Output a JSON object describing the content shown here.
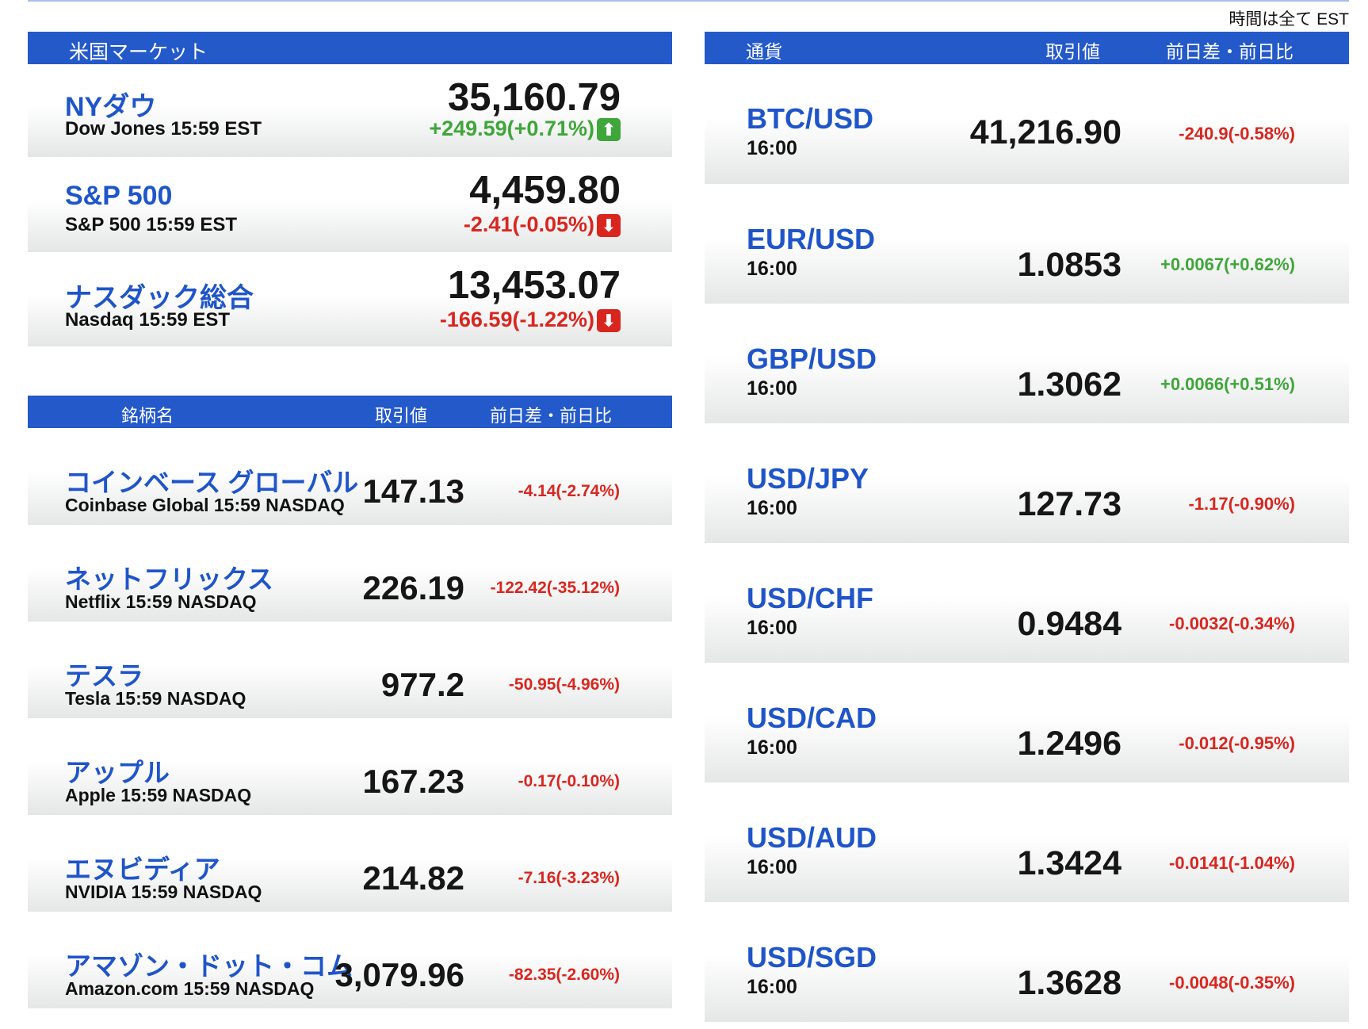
{
  "note": "時間は全て EST",
  "market": {
    "title": "米国マーケット",
    "indices": [
      {
        "name": "NYダウ",
        "sub": "Dow Jones 15:59 EST",
        "value": "35,160.79",
        "change": "+249.59(+0.71%)",
        "dir": "up"
      },
      {
        "name": "S&P 500",
        "sub": "S&P 500 15:59 EST",
        "value": "4,459.80",
        "change": "-2.41(-0.05%)",
        "dir": "down"
      },
      {
        "name": "ナスダック総合",
        "sub": "Nasdaq 15:59 EST",
        "value": "13,453.07",
        "change": "-166.59(-1.22%)",
        "dir": "down"
      }
    ]
  },
  "stocks": {
    "headers": [
      "銘柄名",
      "取引値",
      "前日差・前日比"
    ],
    "rows": [
      {
        "name": "コインベース グローバル",
        "sub": "Coinbase Global 15:59  NASDAQ",
        "value": "147.13",
        "change": "-4.14(-2.74%)"
      },
      {
        "name": "ネットフリックス",
        "sub": "Netflix 15:59  NASDAQ",
        "value": "226.19",
        "change": "-122.42(-35.12%)"
      },
      {
        "name": "テスラ",
        "sub": "Tesla 15:59  NASDAQ",
        "value": "977.2",
        "change": "-50.95(-4.96%)"
      },
      {
        "name": "アップル",
        "sub": "Apple 15:59  NASDAQ",
        "value": "167.23",
        "change": "-0.17(-0.10%)"
      },
      {
        "name": "エヌビディア",
        "sub": "NVIDIA 15:59  NASDAQ",
        "value": "214.82",
        "change": "-7.16(-3.23%)"
      },
      {
        "name": "アマゾン・ドット・コム",
        "sub": "Amazon.com 15:59  NASDAQ",
        "value": "3,079.96",
        "change": "-82.35(-2.60%)"
      }
    ]
  },
  "fx": {
    "headers": [
      "通貨",
      "取引値",
      "前日差・前日比"
    ],
    "rows": [
      {
        "pair": "BTC/USD",
        "time": "16:00",
        "value": "41,216.90",
        "change": "-240.9(-0.58%)",
        "dir": "down"
      },
      {
        "pair": "EUR/USD",
        "time": "16:00",
        "value": "1.0853",
        "change": "+0.0067(+0.62%)",
        "dir": "up"
      },
      {
        "pair": "GBP/USD",
        "time": "16:00",
        "value": "1.3062",
        "change": "+0.0066(+0.51%)",
        "dir": "up"
      },
      {
        "pair": "USD/JPY",
        "time": "16:00",
        "value": "127.73",
        "change": "-1.17(-0.90%)",
        "dir": "down"
      },
      {
        "pair": "USD/CHF",
        "time": "16:00",
        "value": "0.9484",
        "change": "-0.0032(-0.34%)",
        "dir": "down"
      },
      {
        "pair": "USD/CAD",
        "time": "16:00",
        "value": "1.2496",
        "change": "-0.012(-0.95%)",
        "dir": "down"
      },
      {
        "pair": "USD/AUD",
        "time": "16:00",
        "value": "1.3424",
        "change": "-0.0141(-1.04%)",
        "dir": "down"
      },
      {
        "pair": "USD/SGD",
        "time": "16:00",
        "value": "1.3628",
        "change": "-0.0048(-0.35%)",
        "dir": "down"
      }
    ]
  },
  "colors": {
    "header": "#2459c9",
    "name": "#1f55c9",
    "up": "#3fa63a",
    "down": "#d8261f"
  }
}
